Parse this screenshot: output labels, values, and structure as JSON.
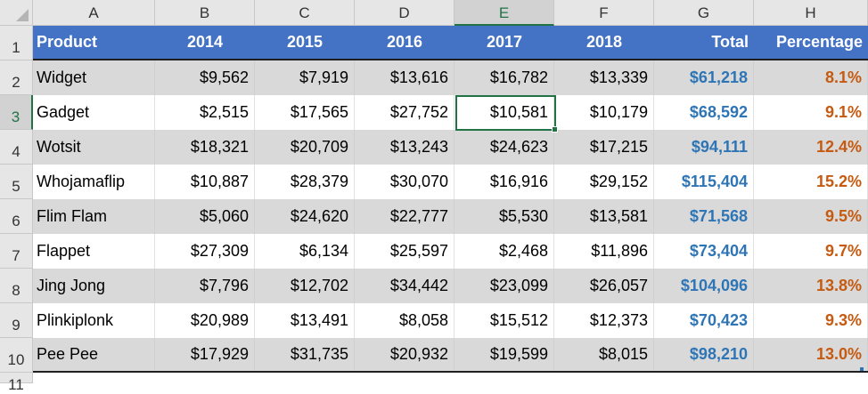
{
  "columns": [
    "A",
    "B",
    "C",
    "D",
    "E",
    "F",
    "G",
    "H"
  ],
  "selected_column": "E",
  "row_numbers": [
    "1",
    "2",
    "3",
    "4",
    "5",
    "6",
    "7",
    "8",
    "9",
    "10",
    "11"
  ],
  "selected_row": "3",
  "header": {
    "product": "Product",
    "y2014": "2014",
    "y2015": "2015",
    "y2016": "2016",
    "y2017": "2017",
    "y2018": "2018",
    "total": "Total",
    "percentage": "Percentage"
  },
  "rows": [
    {
      "product": "Widget",
      "y2014": "$9,562",
      "y2015": "$7,919",
      "y2016": "$13,616",
      "y2017": "$16,782",
      "y2018": "$13,339",
      "total": "$61,218",
      "percentage": "8.1%"
    },
    {
      "product": "Gadget",
      "y2014": "$2,515",
      "y2015": "$17,565",
      "y2016": "$27,752",
      "y2017": "$10,581",
      "y2018": "$10,179",
      "total": "$68,592",
      "percentage": "9.1%"
    },
    {
      "product": "Wotsit",
      "y2014": "$18,321",
      "y2015": "$20,709",
      "y2016": "$13,243",
      "y2017": "$24,623",
      "y2018": "$17,215",
      "total": "$94,111",
      "percentage": "12.4%"
    },
    {
      "product": "Whojamaflip",
      "y2014": "$10,887",
      "y2015": "$28,379",
      "y2016": "$30,070",
      "y2017": "$16,916",
      "y2018": "$29,152",
      "total": "$115,404",
      "percentage": "15.2%"
    },
    {
      "product": "Flim Flam",
      "y2014": "$5,060",
      "y2015": "$24,620",
      "y2016": "$22,777",
      "y2017": "$5,530",
      "y2018": "$13,581",
      "total": "$71,568",
      "percentage": "9.5%"
    },
    {
      "product": "Flappet",
      "y2014": "$27,309",
      "y2015": "$6,134",
      "y2016": "$25,597",
      "y2017": "$2,468",
      "y2018": "$11,896",
      "total": "$73,404",
      "percentage": "9.7%"
    },
    {
      "product": "Jing Jong",
      "y2014": "$7,796",
      "y2015": "$12,702",
      "y2016": "$34,442",
      "y2017": "$23,099",
      "y2018": "$26,057",
      "total": "$104,096",
      "percentage": "13.8%"
    },
    {
      "product": "Plinkiplonk",
      "y2014": "$20,989",
      "y2015": "$13,491",
      "y2016": "$8,058",
      "y2017": "$15,512",
      "y2018": "$12,373",
      "total": "$70,423",
      "percentage": "9.3%"
    },
    {
      "product": "Pee Pee",
      "y2014": "$17,929",
      "y2015": "$31,735",
      "y2016": "$20,932",
      "y2017": "$19,599",
      "y2018": "$8,015",
      "total": "$98,210",
      "percentage": "13.0%"
    }
  ],
  "colors": {
    "header_bg": "#4472c4",
    "band_bg": "#d9d9d9",
    "total_text": "#2e75b6",
    "percentage_text": "#c55a11",
    "selection": "#217346"
  }
}
